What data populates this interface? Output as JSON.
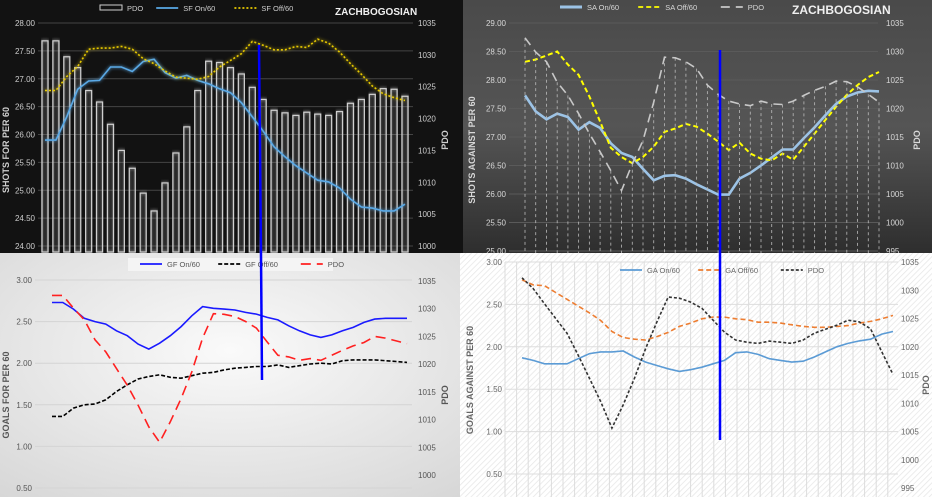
{
  "chart_data": [
    {
      "type": "line",
      "player_label": "ZACHBOGOSIAN",
      "ylabel": "SHOTS FOR PER 60",
      "y2label": "PDO",
      "ylim": [
        24,
        28
      ],
      "y2lim": [
        1000,
        1035
      ],
      "yticks": [
        "24.00",
        "24.50",
        "25.00",
        "25.50",
        "26.00",
        "26.50",
        "27.00",
        "27.50",
        "28.00"
      ],
      "y2ticks": [
        "1000",
        "1005",
        "1010",
        "1015",
        "1020",
        "1025",
        "1030",
        "1035"
      ],
      "grid": true,
      "legend_position": "top",
      "theme": {
        "background": "#121212",
        "text": "#cfcfcf",
        "grid": "#444444"
      },
      "series": [
        {
          "name": "PDO",
          "kind": "bar",
          "axis": "right",
          "color": "#d0d0d0",
          "values": [
            1032.2,
            1032.2,
            1029.7,
            1028.0,
            1024.4,
            1022.6,
            1019.1,
            1015.0,
            1012.2,
            1008.3,
            1005.5,
            1009.9,
            1014.6,
            1018.7,
            1024.4,
            1029.0,
            1028.8,
            1028.0,
            1027.0,
            1024.9,
            1023.0,
            1021.3,
            1020.9,
            1020.5,
            1021.0,
            1020.7,
            1020.5,
            1021.1,
            1022.4,
            1023.0,
            1023.8,
            1024.7,
            1024.6,
            1023.5
          ]
        },
        {
          "name": "SF On/60",
          "kind": "line",
          "axis": "left",
          "color": "#5aa9e6",
          "dash": "",
          "values": [
            25.9,
            25.9,
            26.32,
            26.81,
            26.96,
            26.97,
            27.21,
            27.21,
            27.13,
            27.31,
            27.35,
            27.11,
            27.01,
            27.06,
            26.97,
            26.91,
            26.82,
            26.75,
            26.57,
            26.32,
            26.06,
            25.78,
            25.6,
            25.44,
            25.31,
            25.18,
            25.15,
            25.04,
            24.84,
            24.7,
            24.68,
            24.63,
            24.63,
            24.75
          ]
        },
        {
          "name": "SF Off/60",
          "kind": "line",
          "axis": "left",
          "color": "#e6c800",
          "dash": "2,2",
          "values": [
            26.79,
            26.79,
            27.04,
            27.22,
            27.53,
            27.55,
            27.55,
            27.58,
            27.53,
            27.36,
            27.27,
            27.14,
            27.03,
            27.01,
            26.99,
            27.04,
            27.21,
            27.33,
            27.45,
            27.67,
            27.6,
            27.52,
            27.52,
            27.58,
            27.56,
            27.71,
            27.64,
            27.48,
            27.27,
            27.08,
            26.87,
            26.73,
            26.66,
            26.61
          ]
        }
      ]
    },
    {
      "type": "line",
      "player_label": "ZACHBOGOSIAN",
      "ylabel": "SHOTS AGAINST PER 60",
      "y2label": "PDO",
      "ylim": [
        25,
        29
      ],
      "y2lim": [
        995,
        1035
      ],
      "yticks": [
        "25.00",
        "25.50",
        "26.00",
        "26.50",
        "27.00",
        "27.50",
        "28.00",
        "28.50",
        "29.00"
      ],
      "y2ticks": [
        "995",
        "1000",
        "1005",
        "1010",
        "1015",
        "1020",
        "1025",
        "1030",
        "1035"
      ],
      "grid": true,
      "legend_position": "top",
      "theme": {
        "background": "#3c3c3c",
        "text": "#d8d8d8",
        "grid": "#5a5a5a"
      },
      "series": [
        {
          "name": "SA On/60",
          "kind": "line",
          "axis": "left",
          "color": "#9cc3e6",
          "dash": "",
          "values": [
            27.73,
            27.45,
            27.31,
            27.41,
            27.35,
            27.13,
            27.26,
            27.16,
            26.89,
            26.72,
            26.65,
            26.44,
            26.24,
            26.32,
            26.33,
            26.27,
            26.17,
            26.08,
            25.99,
            25.99,
            26.27,
            26.37,
            26.5,
            26.64,
            26.78,
            26.78,
            26.98,
            27.17,
            27.38,
            27.58,
            27.71,
            27.78,
            27.81,
            27.8
          ]
        },
        {
          "name": "SA Off/60",
          "kind": "line",
          "axis": "left",
          "color": "#ffff00",
          "dash": "5,3",
          "values": [
            28.32,
            28.36,
            28.43,
            28.5,
            28.27,
            28.09,
            27.71,
            27.27,
            26.81,
            26.65,
            26.54,
            26.65,
            26.83,
            27.09,
            27.15,
            27.23,
            27.18,
            27.06,
            26.92,
            26.77,
            26.9,
            26.71,
            26.62,
            26.59,
            26.71,
            26.6,
            26.83,
            27.06,
            27.3,
            27.53,
            27.74,
            27.91,
            28.05,
            28.14
          ]
        },
        {
          "name": "PDO",
          "kind": "line",
          "axis": "right",
          "color": "#c8c8c8",
          "dash": "9,6",
          "droplines": true,
          "values": [
            1032.4,
            1029.9,
            1028.2,
            1024.6,
            1022.3,
            1019.1,
            1015.6,
            1012.4,
            1009.1,
            1005.6,
            1010.3,
            1014.4,
            1021.1,
            1029.0,
            1028.9,
            1028.2,
            1027.0,
            1024.1,
            1022.5,
            1021.3,
            1020.8,
            1020.5,
            1021.3,
            1020.8,
            1020.7,
            1021.3,
            1022.3,
            1023.2,
            1023.9,
            1024.8,
            1024.7,
            1023.8,
            1022.5,
            1021.1
          ]
        }
      ]
    },
    {
      "type": "line",
      "ylabel": "GOALS FOR PER 60",
      "y2label": "PDO",
      "ylim": [
        0.5,
        3.0
      ],
      "y2lim": [
        1000,
        1035
      ],
      "yticks": [
        "0.50",
        "1.00",
        "1.50",
        "2.00",
        "2.50",
        "3.00"
      ],
      "y2ticks": [
        "1000",
        "1005",
        "1010",
        "1015",
        "1020",
        "1025",
        "1030",
        "1035"
      ],
      "grid": true,
      "legend_position": "top",
      "theme": {
        "background": "#ececec",
        "text": "#555555",
        "grid": "#d4d4d4"
      },
      "series": [
        {
          "name": "GF On/60",
          "kind": "line",
          "axis": "left",
          "color": "#1a1aff",
          "dash": "",
          "values": [
            2.73,
            2.73,
            2.65,
            2.54,
            2.5,
            2.47,
            2.39,
            2.33,
            2.23,
            2.17,
            2.24,
            2.33,
            2.44,
            2.57,
            2.68,
            2.66,
            2.65,
            2.64,
            2.61,
            2.59,
            2.55,
            2.52,
            2.45,
            2.39,
            2.34,
            2.31,
            2.34,
            2.39,
            2.43,
            2.49,
            2.53,
            2.54,
            2.54,
            2.54
          ]
        },
        {
          "name": "GF Off/60",
          "kind": "line",
          "axis": "left",
          "color": "#000000",
          "dash": "4,2",
          "values": [
            1.36,
            1.36,
            1.46,
            1.5,
            1.51,
            1.56,
            1.66,
            1.74,
            1.81,
            1.84,
            1.86,
            1.83,
            1.82,
            1.85,
            1.88,
            1.89,
            1.92,
            1.94,
            1.95,
            1.96,
            1.96,
            1.98,
            1.95,
            1.97,
            1.99,
            2.0,
            1.99,
            2.03,
            2.04,
            2.04,
            2.04,
            2.03,
            2.02,
            2.01
          ]
        },
        {
          "name": "PDO",
          "kind": "line",
          "axis": "right",
          "color": "#ff2020",
          "dash": "10,6",
          "values": [
            1032.4,
            1032.4,
            1030.1,
            1028.0,
            1024.4,
            1022.2,
            1019.2,
            1016.2,
            1012.6,
            1008.7,
            1005.9,
            1009.6,
            1013.8,
            1018.6,
            1024.7,
            1029.1,
            1029.0,
            1028.6,
            1027.7,
            1026.5,
            1024.0,
            1021.6,
            1021.3,
            1020.7,
            1021.0,
            1020.7,
            1021.6,
            1022.5,
            1023.3,
            1023.9,
            1025.0,
            1024.7,
            1024.2,
            1023.7
          ]
        }
      ]
    },
    {
      "type": "line",
      "ylabel": "GOALS AGAINST PER 60",
      "y2label": "PDO",
      "ylim": [
        0.5,
        3.0
      ],
      "y2lim": [
        995,
        1035
      ],
      "yticks": [
        "0.50",
        "1.00",
        "1.50",
        "2.00",
        "2.50",
        "3.00"
      ],
      "y2ticks": [
        "995",
        "1000",
        "1005",
        "1010",
        "1015",
        "1020",
        "1025",
        "1030",
        "1035"
      ],
      "grid": true,
      "legend_position": "top",
      "theme": {
        "background": "#ffffff",
        "text": "#666666",
        "grid": "#dddddd"
      },
      "series": [
        {
          "name": "GA On/60",
          "kind": "line",
          "axis": "left",
          "color": "#5b9bd5",
          "dash": "",
          "values": [
            1.87,
            1.84,
            1.8,
            1.8,
            1.8,
            1.86,
            1.92,
            1.94,
            1.94,
            1.95,
            1.88,
            1.82,
            1.78,
            1.74,
            1.71,
            1.73,
            1.76,
            1.8,
            1.84,
            1.93,
            1.94,
            1.91,
            1.86,
            1.84,
            1.82,
            1.83,
            1.88,
            1.94,
            2.0,
            2.04,
            2.07,
            2.09,
            2.15,
            2.18
          ]
        },
        {
          "name": "GA Off/60",
          "kind": "line",
          "axis": "left",
          "color": "#ed7d31",
          "dash": "5,3",
          "values": [
            2.79,
            2.73,
            2.72,
            2.64,
            2.56,
            2.48,
            2.4,
            2.31,
            2.18,
            2.11,
            2.09,
            2.08,
            2.12,
            2.17,
            2.24,
            2.28,
            2.33,
            2.35,
            2.35,
            2.33,
            2.32,
            2.29,
            2.29,
            2.28,
            2.26,
            2.24,
            2.23,
            2.23,
            2.24,
            2.25,
            2.28,
            2.3,
            2.33,
            2.37
          ]
        },
        {
          "name": "PDO",
          "kind": "line",
          "axis": "right",
          "color": "#333333",
          "dash": "3,2",
          "values": [
            1032.2,
            1030.3,
            1027.6,
            1025.0,
            1022.4,
            1018.5,
            1014.4,
            1010.3,
            1005.6,
            1009.7,
            1014.4,
            1019.7,
            1024.4,
            1028.8,
            1028.6,
            1027.9,
            1026.8,
            1024.7,
            1022.6,
            1021.2,
            1020.8,
            1020.6,
            1021.0,
            1020.8,
            1020.6,
            1021.2,
            1022.4,
            1023.1,
            1023.8,
            1024.7,
            1024.4,
            1023.2,
            1019.1,
            1015.1
          ]
        }
      ]
    }
  ],
  "annotation_color": "#0000ff"
}
